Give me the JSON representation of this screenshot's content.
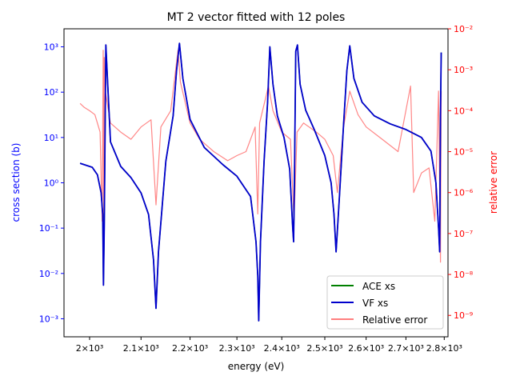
{
  "chart_data": {
    "type": "line",
    "title": "MT 2 vector fitted with 12 poles",
    "xlabel": "energy (eV)",
    "ylabel_left": "cross section (b)",
    "ylabel_right": "relative error",
    "x_scale": "log",
    "y_left_scale": "log",
    "y_right_scale": "log",
    "xlim": [
      1952,
      2810
    ],
    "ylim_left": [
      0.0004,
      2500
    ],
    "ylim_right": [
      3e-10,
      0.01
    ],
    "x_ticks": [
      {
        "value": 2000,
        "label": "2×10³"
      },
      {
        "value": 2100,
        "label": "2.1×10³"
      },
      {
        "value": 2200,
        "label": "2.2×10³"
      },
      {
        "value": 2300,
        "label": "2.3×10³"
      },
      {
        "value": 2400,
        "label": "2.4×10³"
      },
      {
        "value": 2500,
        "label": "2.5×10³"
      },
      {
        "value": 2600,
        "label": "2.6×10³"
      },
      {
        "value": 2700,
        "label": "2.7×10³"
      },
      {
        "value": 2800,
        "label": "2.8×10³"
      }
    ],
    "y_left_ticks": [
      {
        "value": 0.001,
        "label": "10⁻³"
      },
      {
        "value": 0.01,
        "label": "10⁻²"
      },
      {
        "value": 0.1,
        "label": "10⁻¹"
      },
      {
        "value": 1,
        "label": "10⁰"
      },
      {
        "value": 10,
        "label": "10¹"
      },
      {
        "value": 100,
        "label": "10²"
      },
      {
        "value": 1000,
        "label": "10³"
      }
    ],
    "y_right_ticks": [
      {
        "value": 1e-09,
        "label": "10⁻⁹"
      },
      {
        "value": 1e-08,
        "label": "10⁻⁸"
      },
      {
        "value": 1e-07,
        "label": "10⁻⁷"
      },
      {
        "value": 1e-06,
        "label": "10⁻⁶"
      },
      {
        "value": 1e-05,
        "label": "10⁻⁵"
      },
      {
        "value": 0.0001,
        "label": "10⁻⁴"
      },
      {
        "value": 0.001,
        "label": "10⁻³"
      },
      {
        "value": 0.01,
        "label": "10⁻²"
      }
    ],
    "grid": false,
    "legend_position": "bottom-right",
    "series": [
      {
        "name": "ACE xs",
        "color": "#008000",
        "axis": "left",
        "x": [
          1982,
          2005,
          2015,
          2022,
          2025,
          2026.5,
          2028,
          2031,
          2040,
          2060,
          2080,
          2100,
          2115,
          2125,
          2130,
          2135,
          2150,
          2165,
          2172,
          2178,
          2185,
          2200,
          2230,
          2270,
          2300,
          2330,
          2342,
          2346,
          2348,
          2352,
          2360,
          2368,
          2373,
          2380,
          2390,
          2405,
          2418,
          2425,
          2427,
          2429,
          2432,
          2436,
          2442,
          2455,
          2475,
          2500,
          2515,
          2522,
          2527,
          2535,
          2545,
          2553,
          2560,
          2570,
          2590,
          2620,
          2660,
          2700,
          2740,
          2765,
          2778,
          2785,
          2788,
          2790,
          2792
        ],
        "y": [
          2.7,
          2.2,
          1.5,
          0.6,
          0.2,
          0.0055,
          0.1,
          1100,
          8,
          2.3,
          1.3,
          0.6,
          0.2,
          0.02,
          0.0017,
          0.03,
          3,
          30,
          300,
          1200,
          200,
          25,
          6,
          2.5,
          1.4,
          0.5,
          0.05,
          0.009,
          0.0009,
          0.05,
          3,
          60,
          1000,
          150,
          30,
          10,
          2,
          0.1,
          0.05,
          1,
          800,
          1100,
          150,
          40,
          15,
          4,
          1,
          0.2,
          0.03,
          0.5,
          20,
          300,
          1050,
          200,
          60,
          30,
          20,
          15,
          10,
          5,
          1,
          0.1,
          0.03,
          30,
          750
        ]
      },
      {
        "name": "VF xs",
        "color": "#0000cc",
        "axis": "left",
        "x": [
          1982,
          2005,
          2015,
          2022,
          2025,
          2026.5,
          2028,
          2031,
          2040,
          2060,
          2080,
          2100,
          2115,
          2125,
          2130,
          2135,
          2150,
          2165,
          2172,
          2178,
          2185,
          2200,
          2230,
          2270,
          2300,
          2330,
          2342,
          2346,
          2348,
          2352,
          2360,
          2368,
          2373,
          2380,
          2390,
          2405,
          2418,
          2425,
          2427,
          2429,
          2432,
          2436,
          2442,
          2455,
          2475,
          2500,
          2515,
          2522,
          2527,
          2535,
          2545,
          2553,
          2560,
          2570,
          2590,
          2620,
          2660,
          2700,
          2740,
          2765,
          2778,
          2785,
          2788,
          2790,
          2792
        ],
        "y": [
          2.7,
          2.2,
          1.5,
          0.6,
          0.2,
          0.0055,
          0.1,
          1100,
          8,
          2.3,
          1.3,
          0.6,
          0.2,
          0.02,
          0.0017,
          0.03,
          3,
          30,
          300,
          1200,
          200,
          25,
          6,
          2.5,
          1.4,
          0.5,
          0.05,
          0.009,
          0.0009,
          0.05,
          3,
          60,
          1000,
          150,
          30,
          10,
          2,
          0.1,
          0.05,
          1,
          800,
          1100,
          150,
          40,
          15,
          4,
          1,
          0.2,
          0.03,
          0.5,
          20,
          300,
          1050,
          200,
          60,
          30,
          20,
          15,
          10,
          5,
          1,
          0.1,
          0.03,
          30,
          750
        ]
      },
      {
        "name": "Relative error",
        "color": "#ff7f7f",
        "axis": "right",
        "x": [
          1982,
          1990,
          2000,
          2010,
          2020,
          2024,
          2026,
          2027,
          2028,
          2030,
          2040,
          2060,
          2080,
          2100,
          2120,
          2130,
          2140,
          2160,
          2175,
          2180,
          2200,
          2220,
          2250,
          2280,
          2300,
          2320,
          2340,
          2346,
          2350,
          2370,
          2380,
          2400,
          2420,
          2428,
          2435,
          2450,
          2480,
          2500,
          2520,
          2530,
          2545,
          2560,
          2580,
          2600,
          2640,
          2680,
          2712,
          2720,
          2740,
          2760,
          2775,
          2785,
          2790,
          2792
        ],
        "y": [
          0.00015,
          0.00012,
          0.0001,
          8e-05,
          3e-05,
          2e-07,
          0.003,
          5e-08,
          0.002,
          0.0003,
          5e-05,
          3e-05,
          2e-05,
          4e-05,
          6e-05,
          5e-07,
          4e-05,
          0.0001,
          0.003,
          0.0005,
          5e-05,
          2e-05,
          1e-05,
          6e-06,
          8e-06,
          1e-05,
          4e-05,
          3e-07,
          5e-05,
          0.0004,
          0.0001,
          3e-05,
          2e-05,
          2e-07,
          3e-05,
          5e-05,
          3e-05,
          2e-05,
          8e-06,
          1e-06,
          4e-05,
          0.0003,
          8e-05,
          4e-05,
          2e-05,
          1e-05,
          0.0004,
          1e-06,
          3e-06,
          4e-06,
          2e-07,
          0.0003,
          2e-08,
          0.0003
        ]
      }
    ]
  }
}
